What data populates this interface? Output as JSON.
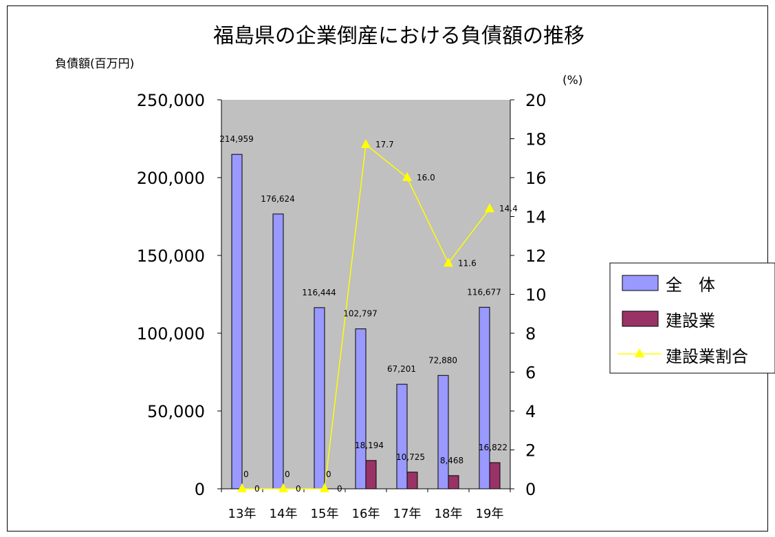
{
  "chart_data": {
    "type": "bar",
    "title": "福島県の企業倒産における負債額の推移",
    "ylabel": "負債額(百万円)",
    "y2label": "(%)",
    "categories": [
      "13年",
      "14年",
      "15年",
      "16年",
      "17年",
      "18年",
      "19年"
    ],
    "ylim": [
      0,
      250000
    ],
    "y2lim": [
      0,
      20
    ],
    "yticks": [
      "250,000",
      "200,000",
      "150,000",
      "100,000",
      "50,000",
      "0"
    ],
    "y2ticks": [
      "20",
      "18",
      "16",
      "14",
      "12",
      "10",
      "8",
      "6",
      "4",
      "2",
      "0"
    ],
    "series": [
      {
        "name": "全　体",
        "kind": "bar",
        "color": "#9999FF",
        "values": [
          214959,
          176624,
          116444,
          102797,
          67201,
          72880,
          116677
        ],
        "labels": [
          "214,959",
          "176,624",
          "116,444",
          "102,797",
          "67,201",
          "72,880",
          "116,677"
        ]
      },
      {
        "name": "建設業",
        "kind": "bar",
        "color": "#993366",
        "values": [
          0,
          0,
          0,
          18194,
          10725,
          8468,
          16822
        ],
        "labels": [
          "0",
          "0",
          "0",
          "18,194",
          "10,725",
          "8,468",
          "16,822"
        ]
      },
      {
        "name": "建設業割合",
        "kind": "line",
        "axis": "right",
        "color": "#FFFF00",
        "values": [
          0,
          0,
          0,
          17.7,
          16.0,
          11.6,
          14.4
        ],
        "labels": [
          "0",
          "0",
          "0",
          "17.7",
          "16.0",
          "11.6",
          "14.4"
        ]
      }
    ],
    "plot_background": "#C0C0C0",
    "legend_position": "right",
    "grid": false
  }
}
